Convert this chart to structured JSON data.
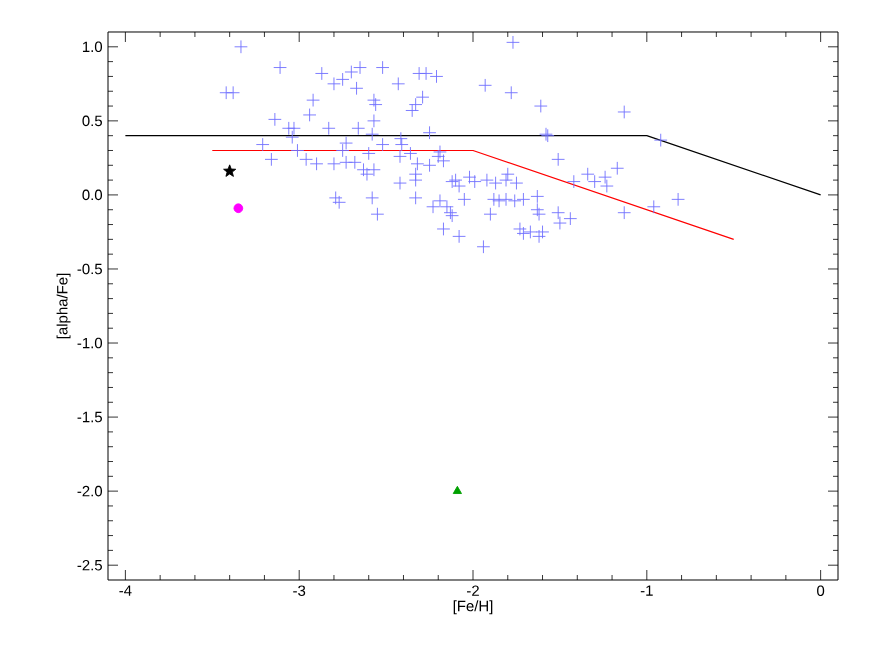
{
  "chart_data": {
    "type": "scatter",
    "xlabel": "[Fe/H]",
    "ylabel": "[alpha/Fe]",
    "xlim": [
      -4.1,
      0.1
    ],
    "ylim": [
      -2.6,
      1.1
    ],
    "xticks": [
      -4,
      -3,
      -2,
      -1,
      0
    ],
    "yticks": [
      {
        "value": -2.5,
        "label": "-2.5"
      },
      {
        "value": -2,
        "label": "-2.0"
      },
      {
        "value": -1.5,
        "label": "-1.5"
      },
      {
        "value": -1,
        "label": "-1.0"
      },
      {
        "value": -0.5,
        "label": "-0.5"
      },
      {
        "value": 0,
        "label": "0.0"
      },
      {
        "value": 0.5,
        "label": "0.5"
      },
      {
        "value": 1,
        "label": "1.0"
      }
    ],
    "series": [
      {
        "marker": "cross",
        "color": "#7070ff",
        "x": [
          -3.335,
          -3.11,
          -3.42,
          -3.38,
          -2.87,
          -2.8,
          -2.75,
          -2.7,
          -2.65,
          -2.67,
          -2.52,
          -2.43,
          -2.31,
          -2.27,
          -2.21,
          -2.29,
          -2.33,
          -2.35,
          -2.92,
          -2.94,
          -3.14,
          -3.06,
          -3.03,
          -3.04,
          -2.83,
          -2.66,
          -2.57,
          -2.56,
          -2.57,
          -2.58,
          -2.73,
          -2.52,
          -2.415,
          -2.41,
          -2.25,
          -3.21,
          -3.16,
          -3.01,
          -2.96,
          -2.9,
          -2.8,
          -2.73,
          -2.68,
          -2.75,
          -2.6,
          -2.63,
          -2.61,
          -2.57,
          -2.42,
          -2.36,
          -2.32,
          -2.2,
          -2.17,
          -2.19,
          -2.42,
          -2.33,
          -2.33,
          -2.25,
          -2.12,
          -2.1,
          -2.08,
          -2.02,
          -1.99,
          -2.33,
          -2.79,
          -2.77,
          -2.58,
          -2.55,
          -2.23,
          -2.19,
          -2.15,
          -2.13,
          -2.12,
          -2.05,
          -2.17,
          -2.08,
          -1.77,
          -1.93,
          -1.78,
          -1.61,
          -1.13,
          -1.58,
          -1.57,
          -0.92,
          -1.51,
          -1.42,
          -1.34,
          -1.3,
          -1.24,
          -1.23,
          -1.17,
          -1.92,
          -1.87,
          -1.81,
          -1.8,
          -1.75,
          -1.88,
          -1.85,
          -1.81,
          -1.76,
          -1.71,
          -1.63,
          -1.9,
          -1.63,
          -1.62,
          -1.51,
          -1.44,
          -1.5,
          -1.73,
          -1.71,
          -1.67,
          -1.62,
          -1.6,
          -1.94,
          -1.13,
          -0.96,
          -0.82
        ],
        "values": [
          1.0,
          0.86,
          0.69,
          0.69,
          0.82,
          0.75,
          0.78,
          0.83,
          0.86,
          0.72,
          0.86,
          0.75,
          0.82,
          0.82,
          0.8,
          0.66,
          0.61,
          0.57,
          0.64,
          0.54,
          0.51,
          0.45,
          0.45,
          0.39,
          0.45,
          0.45,
          0.64,
          0.61,
          0.5,
          0.41,
          0.35,
          0.34,
          0.38,
          0.34,
          0.42,
          0.34,
          0.24,
          0.3,
          0.24,
          0.21,
          0.21,
          0.22,
          0.22,
          0.3,
          0.28,
          0.17,
          0.14,
          0.17,
          0.26,
          0.28,
          0.21,
          0.26,
          0.23,
          0.29,
          0.08,
          0.1,
          0.14,
          0.2,
          0.09,
          0.1,
          0.06,
          0.12,
          0.09,
          -0.02,
          -0.02,
          -0.05,
          -0.02,
          -0.13,
          -0.08,
          -0.04,
          -0.08,
          -0.12,
          -0.14,
          -0.03,
          -0.23,
          -0.28,
          1.03,
          0.74,
          0.69,
          0.6,
          0.56,
          0.41,
          0.4,
          0.37,
          0.24,
          0.09,
          0.14,
          0.09,
          0.12,
          0.06,
          0.18,
          0.1,
          0.08,
          0.1,
          0.14,
          0.08,
          -0.03,
          -0.04,
          -0.03,
          -0.04,
          -0.03,
          -0.01,
          -0.13,
          -0.1,
          -0.13,
          -0.12,
          -0.16,
          -0.19,
          -0.23,
          -0.26,
          -0.25,
          -0.28,
          -0.25,
          -0.35,
          -0.12,
          -0.08,
          -0.03
        ]
      },
      {
        "type": "line",
        "marker": "none",
        "color": "#000000",
        "x": [
          -4,
          -1,
          0
        ],
        "values": [
          0.4,
          0.4,
          0
        ]
      },
      {
        "type": "line",
        "marker": "none",
        "color": "#ff0000",
        "x": [
          -3.5,
          -2,
          -0.5
        ],
        "values": [
          0.3,
          0.3,
          -0.3
        ]
      },
      {
        "marker": "star",
        "color": "#000000",
        "x": [
          -3.4
        ],
        "values": [
          0.16
        ]
      },
      {
        "marker": "circle",
        "color": "#ff00ff",
        "x": [
          -3.35
        ],
        "values": [
          -0.09
        ]
      },
      {
        "marker": "triangle",
        "color": "#00a000",
        "x": [
          -2.09
        ],
        "values": [
          -2.0
        ]
      }
    ]
  }
}
